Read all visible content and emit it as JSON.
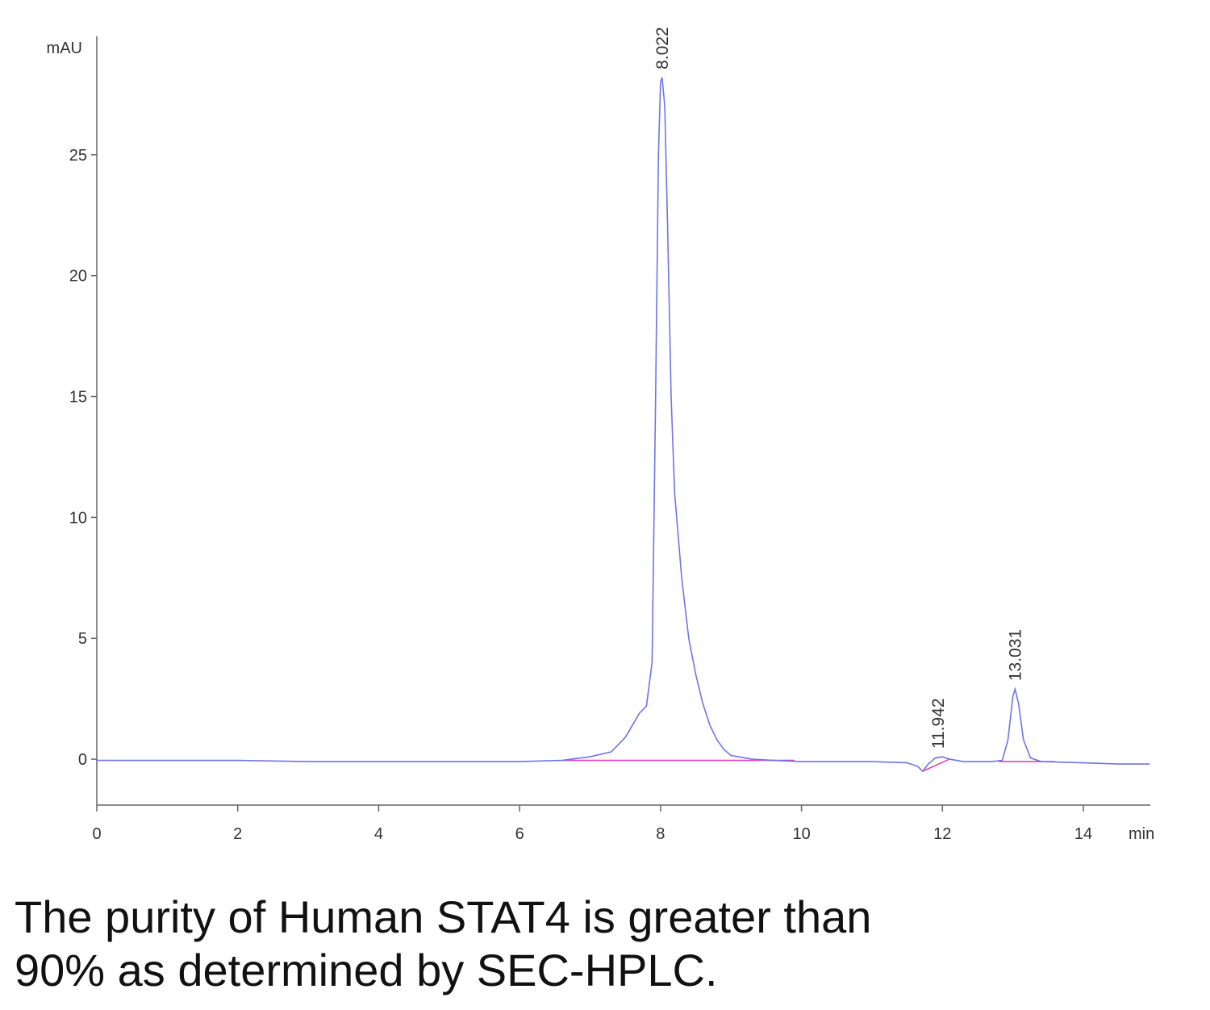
{
  "chart_data": {
    "type": "line",
    "y_axis_label": "mAU",
    "x_axis_label": "min",
    "xlim": [
      0,
      14.95
    ],
    "ylim": [
      -1.9,
      29.9
    ],
    "xticks": [
      0,
      2,
      4,
      6,
      8,
      10,
      12,
      14
    ],
    "yticks": [
      0,
      5,
      10,
      15,
      20,
      25
    ],
    "series": [
      {
        "color": "#6f74e8",
        "x": [
          0,
          1,
          2,
          3,
          4,
          5,
          6,
          6.6,
          7.0,
          7.3,
          7.5,
          7.7,
          7.8,
          7.88,
          7.93,
          7.97,
          8.0,
          8.022,
          8.06,
          8.1,
          8.15,
          8.2,
          8.3,
          8.4,
          8.5,
          8.6,
          8.7,
          8.8,
          8.9,
          9.0,
          9.3,
          9.6,
          10,
          11,
          11.5,
          11.65,
          11.72,
          11.8,
          11.9,
          12.0,
          12.1,
          12.3,
          12.7,
          12.85,
          12.93,
          13.0,
          13.031,
          13.08,
          13.15,
          13.25,
          13.4,
          14,
          14.5,
          14.94
        ],
        "values": [
          -0.05,
          -0.05,
          -0.05,
          -0.1,
          -0.1,
          -0.1,
          -0.1,
          -0.05,
          0.1,
          0.3,
          0.9,
          1.9,
          2.2,
          4,
          15,
          25,
          28,
          28.2,
          27,
          22,
          15,
          11,
          7.5,
          5,
          3.5,
          2.3,
          1.4,
          0.8,
          0.4,
          0.15,
          0.0,
          -0.05,
          -0.1,
          -0.1,
          -0.15,
          -0.3,
          -0.5,
          -0.2,
          0.05,
          0.1,
          0.0,
          -0.1,
          -0.1,
          -0.05,
          0.8,
          2.6,
          2.9,
          2.3,
          0.8,
          0.05,
          -0.1,
          -0.15,
          -0.2,
          -0.2
        ]
      }
    ],
    "baselines": [
      {
        "color": "#e040c0",
        "x": [
          6.6,
          9.9
        ],
        "values": [
          -0.05,
          -0.05
        ]
      },
      {
        "color": "#e040c0",
        "x": [
          11.72,
          12.1
        ],
        "values": [
          -0.5,
          0.0
        ]
      },
      {
        "color": "#e040c0",
        "x": [
          12.8,
          13.6
        ],
        "values": [
          -0.1,
          -0.1
        ]
      }
    ],
    "peak_labels": [
      {
        "text": "8.022",
        "x": 8.022,
        "y": 28.2
      },
      {
        "text": "11.942",
        "x": 11.942,
        "y": 0.1
      },
      {
        "text": "13.031",
        "x": 13.031,
        "y": 2.9
      }
    ]
  },
  "caption": [
    "The purity of Human STAT4 is greater than",
    "90% as determined by SEC-HPLC."
  ]
}
